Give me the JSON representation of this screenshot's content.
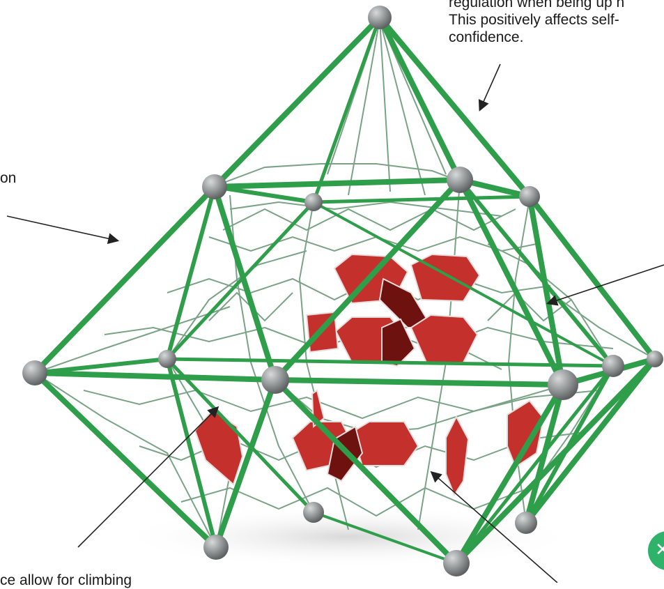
{
  "annotations": {
    "top_right": [
      "regulation when being up h",
      "This positively affects self-",
      "confidence."
    ],
    "left": "on",
    "bottom_left": "ce allow for climbing"
  },
  "colors": {
    "frame": "#2f9e4a",
    "frame_dark": "#1f7a36",
    "rope": "#5f8f6e",
    "panel": "#c4302b",
    "node": "#8e9292",
    "arrow": "#222222",
    "badge": "#2fb36a"
  },
  "badge_icon": "badge-icon"
}
